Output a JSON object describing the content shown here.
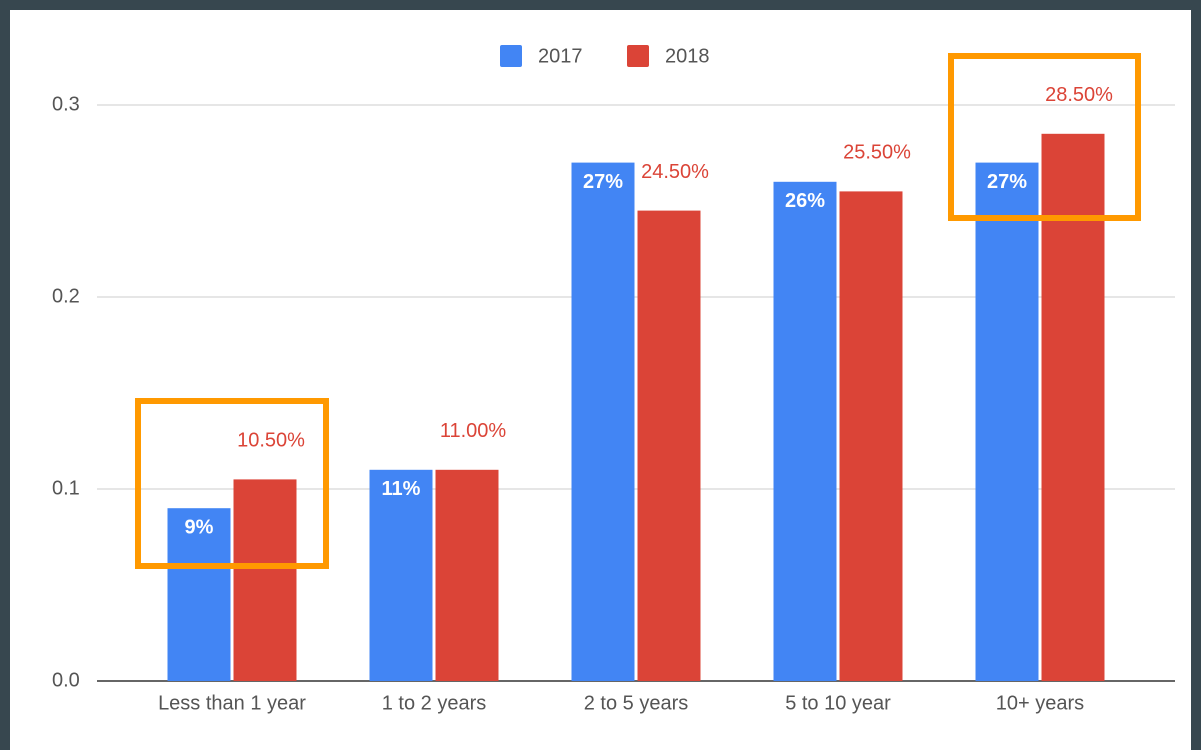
{
  "chart_data": {
    "type": "bar",
    "categories": [
      "Less than 1 year",
      "1 to 2 years",
      "2 to 5 years",
      "5 to 10 year",
      "10+ years"
    ],
    "series": [
      {
        "name": "2017",
        "color": "#4285f4",
        "values": [
          0.09,
          0.11,
          0.27,
          0.26,
          0.27
        ],
        "value_labels": [
          "9%",
          "11%",
          "27%",
          "26%",
          "27%"
        ]
      },
      {
        "name": "2018",
        "color": "#db4437",
        "values": [
          0.105,
          0.11,
          0.245,
          0.255,
          0.285
        ],
        "value_labels": [
          "10.50%",
          "11.00%",
          "24.50%",
          "25.50%",
          "28.50%"
        ]
      }
    ],
    "ylim": [
      0,
      0.32
    ],
    "yticks": [
      {
        "value": 0,
        "label": "0.0"
      },
      0.1,
      0.2,
      0.3
    ],
    "grid": true,
    "legend": "top"
  }
}
